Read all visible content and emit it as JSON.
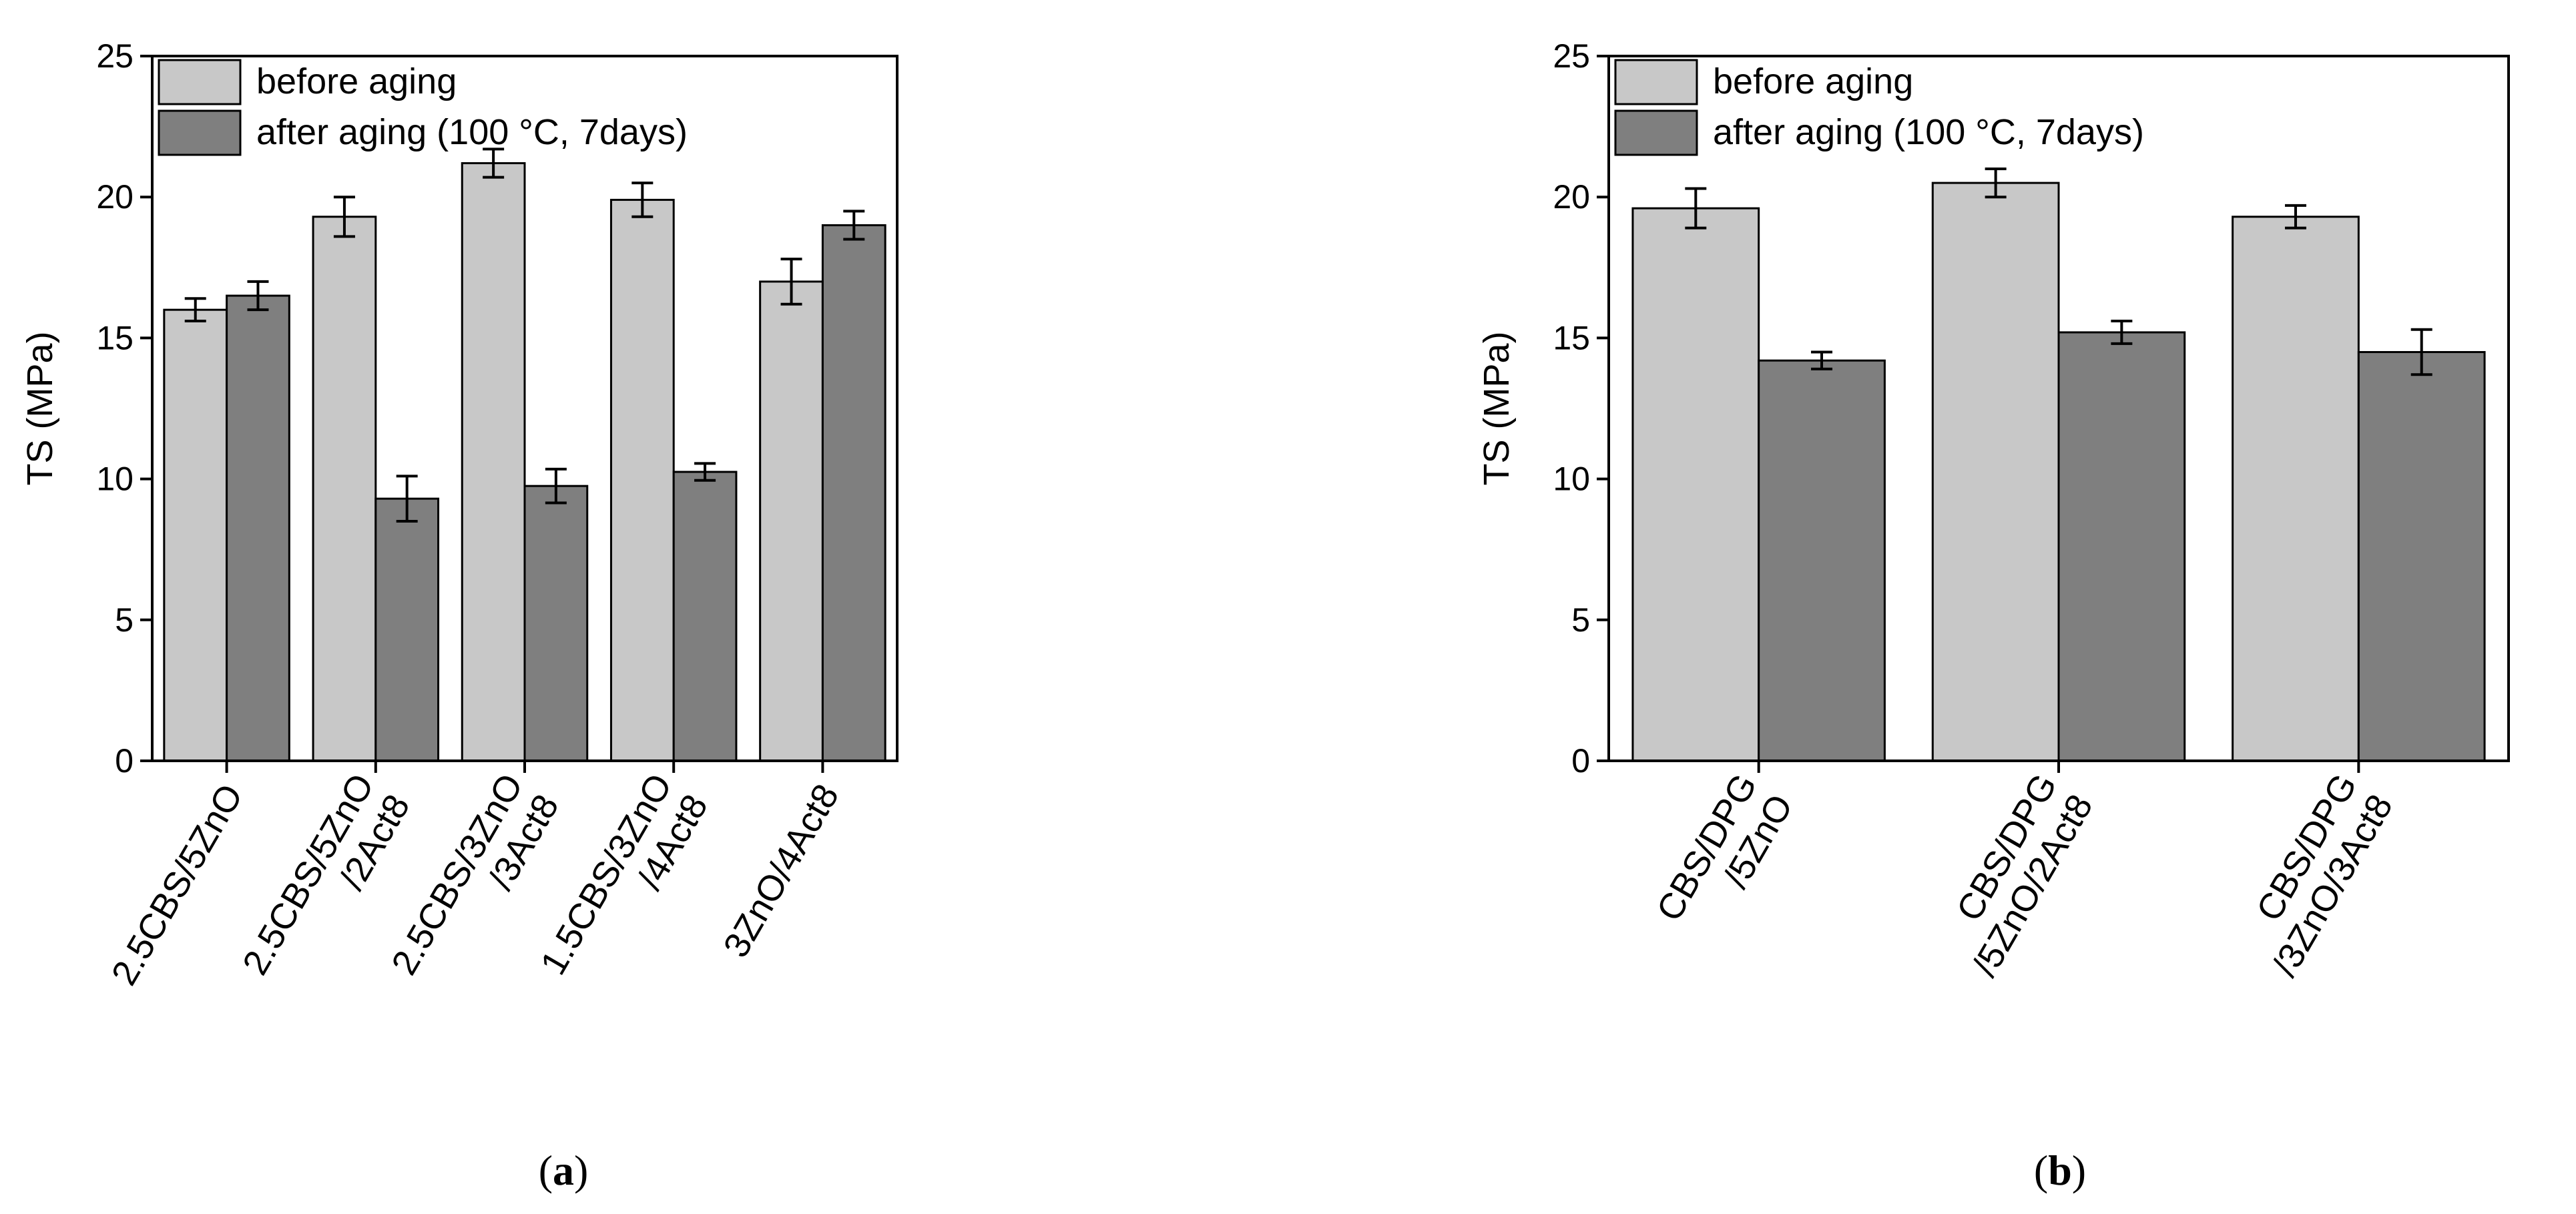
{
  "chart_data": [
    {
      "type": "bar",
      "panel_label": "a",
      "ylabel": "TS (MPa)",
      "ylim": [
        0,
        25
      ],
      "yticks": [
        "0",
        "5",
        "10",
        "15",
        "20",
        "25"
      ],
      "categories": [
        [
          "2.5CBS/5ZnO"
        ],
        [
          "2.5CBS/5ZnO",
          "/2Act8"
        ],
        [
          "2.5CBS/3ZnO",
          "/3Act8"
        ],
        [
          "1.5CBS/3ZnO",
          "/4Act8"
        ],
        [
          "3ZnO/4Act8"
        ]
      ],
      "legend_position": "top-left",
      "series": [
        {
          "name": "before aging",
          "color": "#c8c8c8",
          "values": [
            16.0,
            19.3,
            21.2,
            19.9,
            17.0
          ],
          "errors": [
            0.4,
            0.7,
            0.5,
            0.6,
            0.8
          ]
        },
        {
          "name": "after aging (100 °C, 7days)",
          "color": "#7f7f7f",
          "values": [
            16.5,
            9.3,
            9.75,
            10.25,
            19.0
          ],
          "errors": [
            0.5,
            0.8,
            0.6,
            0.3,
            0.5
          ]
        }
      ]
    },
    {
      "type": "bar",
      "panel_label": "b",
      "ylabel": "TS (MPa)",
      "ylim": [
        0,
        25
      ],
      "yticks": [
        "0",
        "5",
        "10",
        "15",
        "20",
        "25"
      ],
      "categories": [
        [
          "CBS/DPG",
          "/5ZnO"
        ],
        [
          "CBS/DPG",
          "/5ZnO/2Act8"
        ],
        [
          "CBS/DPG",
          "/3ZnO/3Act8"
        ]
      ],
      "legend_position": "top-left",
      "series": [
        {
          "name": "before aging",
          "color": "#c8c8c8",
          "values": [
            19.6,
            20.5,
            19.3
          ],
          "errors": [
            0.7,
            0.5,
            0.4
          ]
        },
        {
          "name": "after aging (100 °C, 7days)",
          "color": "#7f7f7f",
          "values": [
            14.2,
            15.2,
            14.5
          ],
          "errors": [
            0.3,
            0.4,
            0.8
          ]
        }
      ]
    }
  ]
}
